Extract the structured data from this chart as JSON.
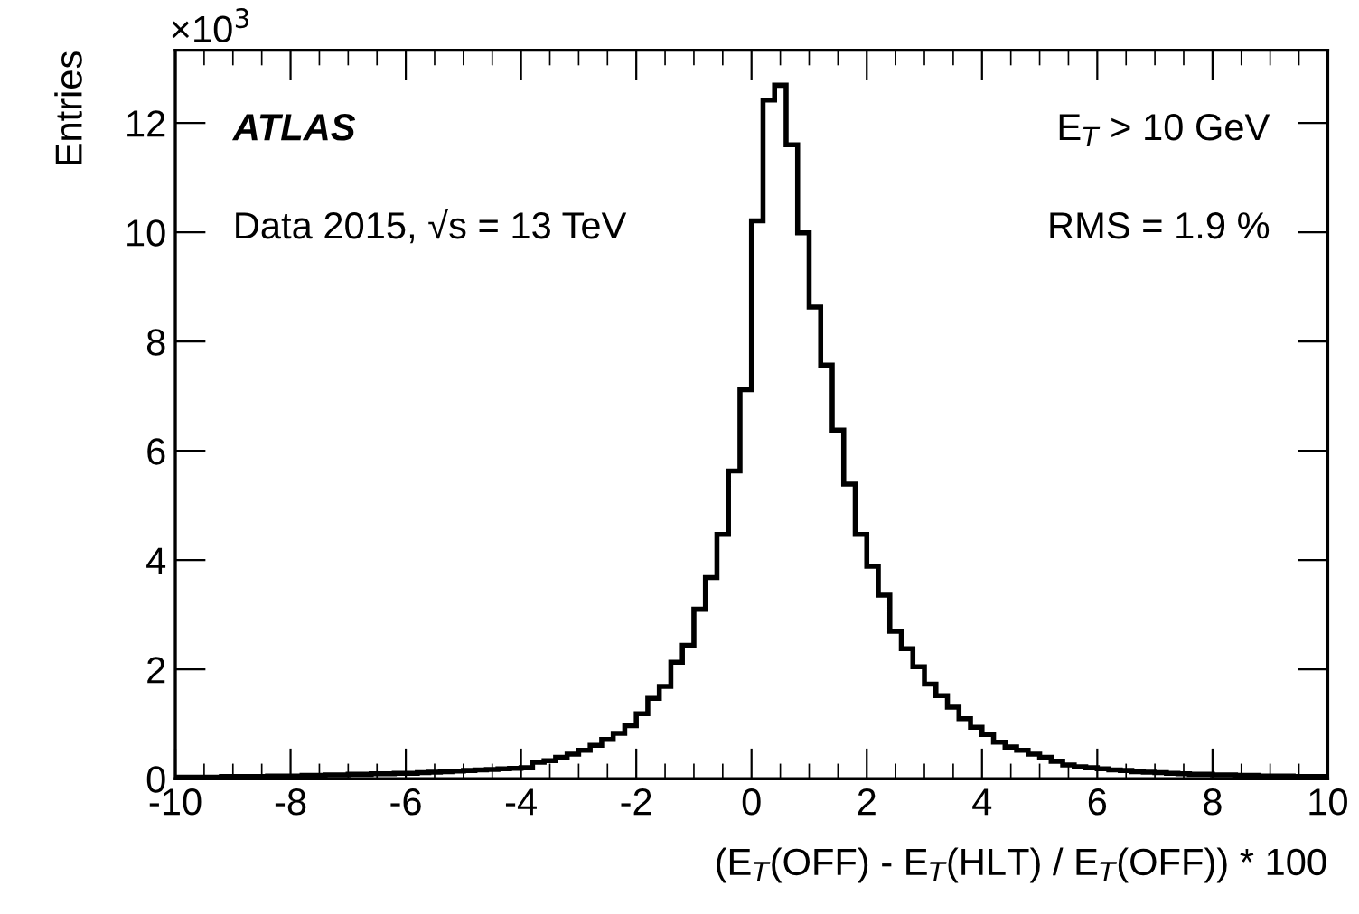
{
  "chart_data": {
    "type": "histogram",
    "ylabel": "Entries",
    "xlabel": "(E$_{T}$(OFF) - E$_{T}$(HLT) / E$_{T}$(OFF)) * 100",
    "annotations": [
      "×10$^{3}$",
      "ATLAS",
      "Data 2015, √s = 13 TeV",
      "E$_{T}$ > 10 GeV",
      "RMS = 1.9 %"
    ],
    "bins": [
      -10,
      -9.8,
      -9.6,
      -9.4,
      -9.2,
      -9,
      -8.8,
      -8.6,
      -8.4,
      -8.2,
      -8,
      -7.8,
      -7.6,
      -7.4,
      -7.2,
      -7,
      -6.8,
      -6.6,
      -6.4,
      -6.2,
      -6,
      -5.8,
      -5.6,
      -5.4,
      -5.2,
      -5,
      -4.8,
      -4.6,
      -4.4,
      -4.2,
      -4,
      -3.8,
      -3.6,
      -3.4,
      -3.2,
      -3,
      -2.8,
      -2.6,
      -2.4,
      -2.2,
      -2,
      -1.8,
      -1.6,
      -1.4,
      -1.2,
      -1,
      -0.8,
      -0.6,
      -0.4,
      -0.2,
      0,
      0.2,
      0.4,
      0.6,
      0.8,
      1,
      1.2,
      1.4,
      1.6,
      1.8,
      2,
      2.2,
      2.4,
      2.6,
      2.8,
      3,
      3.2,
      3.4,
      3.6,
      3.8,
      4,
      4.2,
      4.4,
      4.6,
      4.8,
      5,
      5.2,
      5.4,
      5.6,
      5.8,
      6,
      6.2,
      6.4,
      6.6,
      6.8,
      7,
      7.2,
      7.4,
      7.6,
      7.8,
      8,
      8.2,
      8.4,
      8.6,
      8.8,
      9,
      9.2,
      9.4,
      9.6,
      9.8,
      10
    ],
    "values": [
      0.03,
      0.03,
      0.03,
      0.03,
      0.04,
      0.04,
      0.04,
      0.04,
      0.05,
      0.05,
      0.05,
      0.06,
      0.06,
      0.07,
      0.07,
      0.08,
      0.08,
      0.09,
      0.09,
      0.1,
      0.1,
      0.11,
      0.12,
      0.13,
      0.14,
      0.15,
      0.16,
      0.17,
      0.18,
      0.19,
      0.2,
      0.3,
      0.33,
      0.39,
      0.45,
      0.52,
      0.61,
      0.72,
      0.83,
      0.97,
      1.19,
      1.47,
      1.69,
      2.13,
      2.44,
      3.1,
      3.68,
      4.47,
      5.63,
      7.12,
      10.21,
      12.42,
      12.69,
      11.6,
      9.99,
      8.63,
      7.57,
      6.38,
      5.39,
      4.47,
      3.89,
      3.36,
      2.7,
      2.38,
      2.05,
      1.73,
      1.52,
      1.31,
      1.1,
      0.94,
      0.81,
      0.67,
      0.58,
      0.52,
      0.45,
      0.39,
      0.32,
      0.25,
      0.22,
      0.2,
      0.18,
      0.16,
      0.15,
      0.13,
      0.12,
      0.11,
      0.1,
      0.09,
      0.08,
      0.08,
      0.07,
      0.07,
      0.06,
      0.06,
      0.05,
      0.05,
      0.05,
      0.04,
      0.04,
      0.04
    ],
    "color": "#000000",
    "xlim": [
      -10,
      10
    ],
    "xticks": [
      -10,
      -8,
      -6,
      -4,
      -2,
      0,
      2,
      4,
      6,
      8,
      10
    ],
    "ylim": [
      0,
      13.33
    ],
    "yticks": [
      0,
      2,
      4,
      6,
      8,
      10,
      12
    ],
    "grid": false,
    "legend": false
  }
}
